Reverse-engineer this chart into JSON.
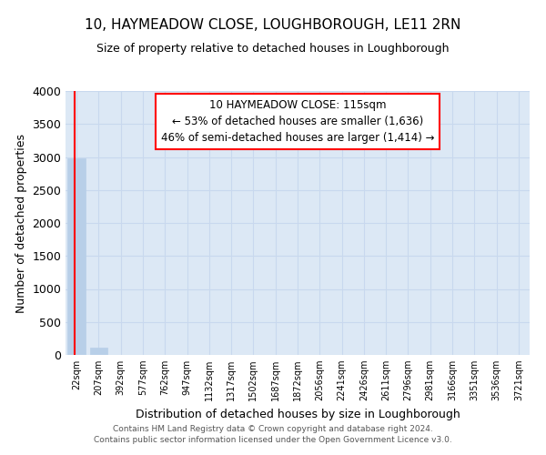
{
  "title": "10, HAYMEADOW CLOSE, LOUGHBOROUGH, LE11 2RN",
  "subtitle": "Size of property relative to detached houses in Loughborough",
  "xlabel": "Distribution of detached houses by size in Loughborough",
  "ylabel": "Number of detached properties",
  "categories": [
    "22sqm",
    "207sqm",
    "392sqm",
    "577sqm",
    "762sqm",
    "947sqm",
    "1132sqm",
    "1317sqm",
    "1502sqm",
    "1687sqm",
    "1872sqm",
    "2056sqm",
    "2241sqm",
    "2426sqm",
    "2611sqm",
    "2796sqm",
    "2981sqm",
    "3166sqm",
    "3351sqm",
    "3536sqm",
    "3721sqm"
  ],
  "values": [
    2980,
    110,
    0,
    0,
    0,
    0,
    0,
    0,
    0,
    0,
    0,
    0,
    0,
    0,
    0,
    0,
    0,
    0,
    0,
    0,
    0
  ],
  "bar_color": "#b8cfe8",
  "grid_color": "#c8d8ee",
  "background_color": "#dce8f5",
  "ylim": [
    0,
    4000
  ],
  "yticks": [
    0,
    500,
    1000,
    1500,
    2000,
    2500,
    3000,
    3500,
    4000
  ],
  "annotation_text_line1": "10 HAYMEADOW CLOSE: 115sqm",
  "annotation_text_line2": "← 53% of detached houses are smaller (1,636)",
  "annotation_text_line3": "46% of semi-detached houses are larger (1,414) →",
  "footer_line1": "Contains HM Land Registry data © Crown copyright and database right 2024.",
  "footer_line2": "Contains public sector information licensed under the Open Government Licence v3.0."
}
